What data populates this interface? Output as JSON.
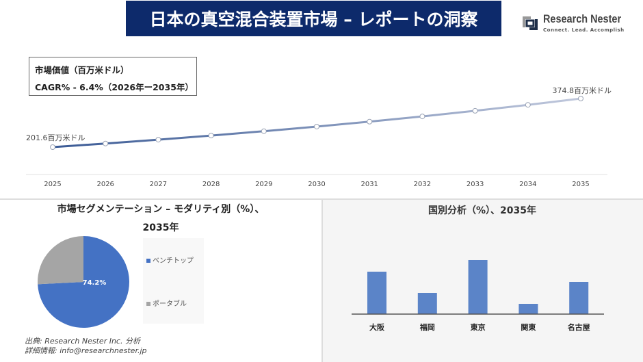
{
  "header": {
    "title": "日本の真空混合装置市場 – レポートの洞察",
    "logo_name": "Research Nester",
    "logo_tagline": "Connect. Lead. Accomplish"
  },
  "info_box": {
    "line1": "市場価値（百万米ドル）",
    "line2": "CAGR% - 6.4%（2026年ー2035年）"
  },
  "colors": {
    "title_bg": "#0d2a6b",
    "line_start": "#3a5a95",
    "line_end": "#c0c8dc",
    "pie_benchtop": "#4472c4",
    "pie_portable": "#a5a5a5",
    "bar": "#5b84c8"
  },
  "chart_data": [
    {
      "type": "line",
      "x": [
        2025,
        2026,
        2027,
        2028,
        2029,
        2030,
        2031,
        2032,
        2033,
        2034,
        2035
      ],
      "values": [
        201.6,
        214.5,
        228.2,
        242.8,
        258.4,
        274.9,
        292.5,
        311.2,
        331.1,
        352.3,
        374.8
      ],
      "tick_labels": [
        "2025",
        "2026",
        "2027",
        "2028",
        "2029",
        "2030",
        "2031",
        "2032",
        "2033",
        "2034",
        "2035"
      ],
      "data_labels": {
        "start": "201.6百万米ドル",
        "end": "374.8百万米ドル"
      },
      "grid": false
    },
    {
      "type": "pie",
      "title_line1": "市場セグメンテーション – モダリティ別（%）、",
      "title_line2": "2035年",
      "categories": [
        "ベンチトップ",
        "ポータブル"
      ],
      "values": [
        74.2,
        25.8
      ],
      "data_label": "74.2%",
      "legend": "right"
    },
    {
      "type": "bar",
      "title": "国別分析（%）、2035年",
      "categories": [
        "大阪",
        "福岡",
        "東京",
        "関東",
        "名古屋"
      ],
      "values": [
        62,
        31,
        79,
        15,
        47
      ]
    }
  ],
  "source": {
    "line1": "出典: Research Nester Inc. 分析",
    "line2": "詳細情報: info@researchnester.jp"
  }
}
